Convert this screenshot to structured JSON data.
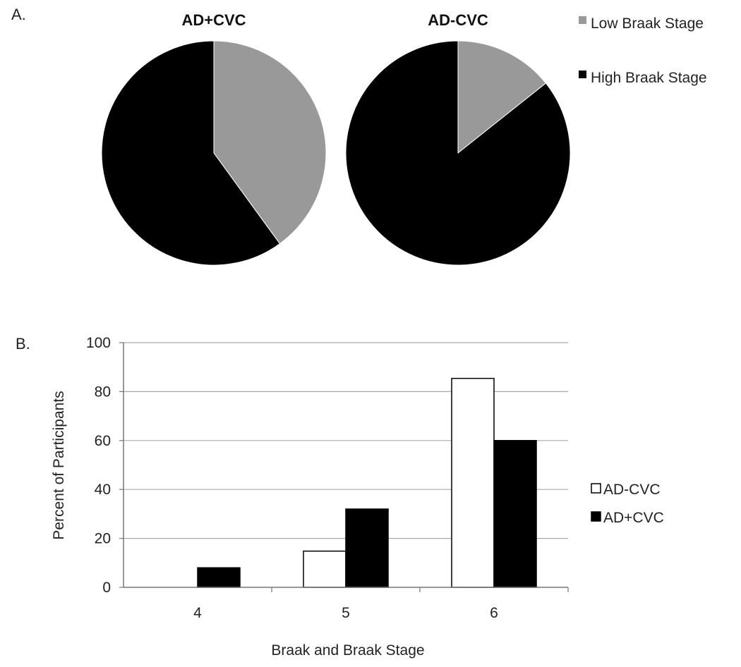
{
  "panels": {
    "a_label": "A.",
    "b_label": "B."
  },
  "colors": {
    "low": "#999999",
    "high": "#000000",
    "ad_minus": "#ffffff",
    "ad_plus": "#000000",
    "grid": "#aaaaaa",
    "axis": "#777777"
  },
  "chart_data": [
    {
      "type": "pie",
      "title": "AD+CVC",
      "slices": [
        {
          "label": "Low Braak Stage",
          "value": 40
        },
        {
          "label": "High Braak Stage",
          "value": 60
        }
      ]
    },
    {
      "type": "pie",
      "title": "AD-CVC",
      "slices": [
        {
          "label": "Low Braak Stage",
          "value": 14.3
        },
        {
          "label": "High Braak Stage",
          "value": 85.7
        }
      ]
    },
    {
      "type": "bar",
      "categories": [
        "4",
        "5",
        "6"
      ],
      "series": [
        {
          "name": "AD-CVC",
          "values": [
            0,
            14.8,
            85.4
          ]
        },
        {
          "name": "AD+CVC",
          "values": [
            8,
            32,
            60
          ]
        }
      ],
      "xlabel": "Braak and Braak Stage",
      "ylabel": "Percent of Participants",
      "ylim": [
        0,
        100
      ],
      "yticks": [
        0,
        20,
        40,
        60,
        80,
        100
      ],
      "grid": true,
      "legend": "right"
    }
  ],
  "pie_legend": {
    "items": [
      "Low Braak Stage",
      "High Braak Stage"
    ],
    "placement": "top-right"
  }
}
